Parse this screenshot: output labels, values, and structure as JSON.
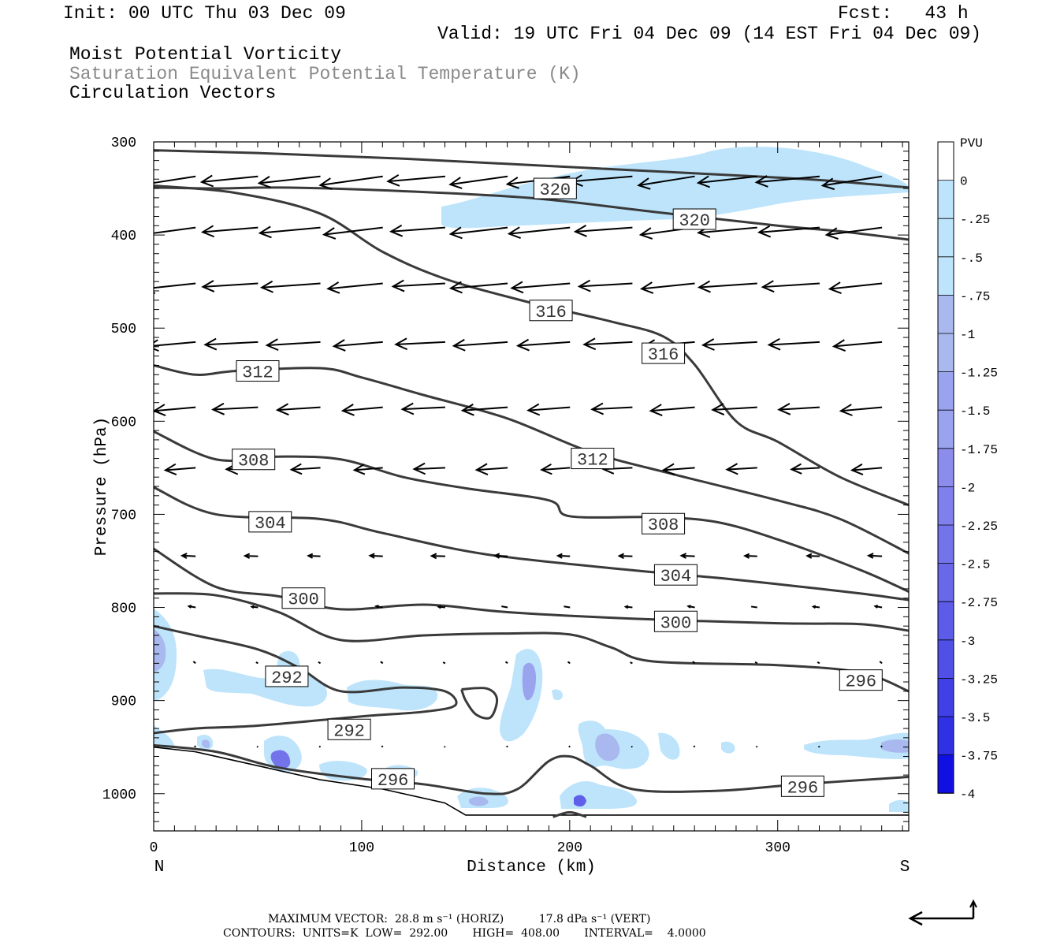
{
  "header": {
    "init": "Init: 00 UTC Thu 03 Dec 09",
    "fcst": "Fcst:   43 h",
    "valid": "Valid: 19 UTC Fri 04 Dec 09 (14 EST Fri 04 Dec 09)",
    "field1": "Moist Potential Vorticity",
    "field2": "Saturation Equivalent Potential Temperature (K)",
    "field3": "Circulation Vectors"
  },
  "footer": {
    "max_vector": "MAXIMUM VECTOR:  28.8 m s⁻¹ (HORIZ)          17.8 dPa s⁻¹ (VERT)",
    "contours": "CONTOURS:  UNITS=K  LOW=  292.00       HIGH=  408.00       INTERVAL=    4.0000"
  },
  "colors": {
    "contour": "#3a3a3a",
    "vector": "#000000",
    "pv_light": "#bde4fb",
    "pv_medium": "#a9b8ef",
    "pv_deep": "#5f5fe9"
  },
  "chart_data": {
    "type": "contour",
    "xlabel": "Distance (km)",
    "ylabel": "Pressure (hPa)",
    "xlim": [
      0,
      363
    ],
    "ylim": [
      1040,
      300
    ],
    "x_ticks": [
      0,
      100,
      200,
      300
    ],
    "y_ticks": [
      300,
      400,
      500,
      600,
      700,
      800,
      900,
      1000
    ],
    "x_end_labels": {
      "left": "N",
      "right": "S"
    },
    "colorbar": {
      "title": "PVU",
      "labels": [
        "0",
        "-.25",
        "-.5",
        "-.75",
        "-1",
        "-1.25",
        "-1.5",
        "-1.75",
        "-2",
        "-2.25",
        "-2.5",
        "-2.75",
        "-3",
        "-3.25",
        "-3.5",
        "-3.75",
        "-4"
      ],
      "colors": [
        "#ffffff",
        "#bde4fb",
        "#bde4fb",
        "#bde4fb",
        "#a9b8ef",
        "#a9b8ef",
        "#9aa3ee",
        "#9aa3ee",
        "#8c8ced",
        "#8080ec",
        "#7474ea",
        "#6868e9",
        "#5c5ce8",
        "#5050e7",
        "#4040e6",
        "#3030e5",
        "#1010e3"
      ]
    },
    "contour_labels": [
      {
        "value": "320",
        "x": 193,
        "p": 350
      },
      {
        "value": "320",
        "x": 260,
        "p": 383
      },
      {
        "value": "316",
        "x": 191,
        "p": 481
      },
      {
        "value": "316",
        "x": 245,
        "p": 527
      },
      {
        "value": "312",
        "x": 50,
        "p": 546
      },
      {
        "value": "312",
        "x": 211,
        "p": 640
      },
      {
        "value": "308",
        "x": 48,
        "p": 641
      },
      {
        "value": "308",
        "x": 245,
        "p": 710
      },
      {
        "value": "304",
        "x": 56,
        "p": 708
      },
      {
        "value": "304",
        "x": 251,
        "p": 765
      },
      {
        "value": "300",
        "x": 72,
        "p": 790
      },
      {
        "value": "300",
        "x": 251,
        "p": 815
      },
      {
        "value": "296",
        "x": 340,
        "p": 878
      },
      {
        "value": "296",
        "x": 115,
        "p": 984
      },
      {
        "value": "296",
        "x": 312,
        "p": 992
      },
      {
        "value": "292",
        "x": 64,
        "p": 874
      },
      {
        "value": "292",
        "x": 94,
        "p": 931
      }
    ],
    "contours": [
      {
        "value": 320,
        "points": [
          [
            0,
            309
          ],
          [
            50,
            312
          ],
          [
            120,
            318
          ],
          [
            200,
            327
          ],
          [
            280,
            336
          ],
          [
            320,
            341
          ],
          [
            363,
            349
          ]
        ]
      },
      {
        "value": 320,
        "points": [
          [
            0,
            349
          ],
          [
            30,
            350
          ],
          [
            60,
            349
          ],
          [
            110,
            352
          ],
          [
            180,
            360
          ],
          [
            240,
            375
          ],
          [
            300,
            390
          ],
          [
            330,
            396
          ],
          [
            363,
            405
          ]
        ]
      },
      {
        "value": 316,
        "points": [
          [
            0,
            347
          ],
          [
            40,
            355
          ],
          [
            80,
            377
          ],
          [
            110,
            418
          ],
          [
            140,
            447
          ],
          [
            180,
            472
          ],
          [
            220,
            493
          ],
          [
            245,
            509
          ],
          [
            260,
            539
          ],
          [
            280,
            600
          ],
          [
            300,
            622
          ],
          [
            330,
            660
          ],
          [
            363,
            690
          ]
        ]
      },
      {
        "value": 312,
        "points": [
          [
            0,
            540
          ],
          [
            20,
            550
          ],
          [
            40,
            546
          ],
          [
            80,
            543
          ],
          [
            100,
            553
          ],
          [
            130,
            572
          ],
          [
            170,
            597
          ],
          [
            210,
            633
          ],
          [
            250,
            657
          ],
          [
            300,
            685
          ],
          [
            330,
            705
          ],
          [
            363,
            742
          ]
        ]
      },
      {
        "value": 308,
        "points": [
          [
            0,
            611
          ],
          [
            30,
            641
          ],
          [
            60,
            638
          ],
          [
            90,
            641
          ],
          [
            120,
            660
          ],
          [
            150,
            672
          ],
          [
            190,
            685
          ],
          [
            200,
            702
          ],
          [
            240,
            703
          ],
          [
            270,
            708
          ],
          [
            300,
            727
          ],
          [
            340,
            760
          ],
          [
            363,
            783
          ]
        ]
      },
      {
        "value": 304,
        "points": [
          [
            0,
            671
          ],
          [
            30,
            700
          ],
          [
            80,
            705
          ],
          [
            110,
            720
          ],
          [
            160,
            743
          ],
          [
            230,
            760
          ],
          [
            270,
            768
          ],
          [
            300,
            775
          ],
          [
            340,
            785
          ],
          [
            363,
            792
          ]
        ]
      },
      {
        "value": 300,
        "points": [
          [
            0,
            737
          ],
          [
            30,
            778
          ],
          [
            60,
            788
          ],
          [
            90,
            802
          ],
          [
            130,
            797
          ],
          [
            170,
            805
          ],
          [
            230,
            812
          ],
          [
            300,
            817
          ],
          [
            340,
            818
          ],
          [
            363,
            825
          ]
        ]
      },
      {
        "value": 296,
        "points": [
          [
            0,
            785
          ],
          [
            30,
            787
          ],
          [
            60,
            805
          ],
          [
            90,
            835
          ],
          [
            130,
            830
          ],
          [
            170,
            828
          ],
          [
            200,
            829
          ],
          [
            220,
            843
          ],
          [
            240,
            858
          ],
          [
            300,
            862
          ],
          [
            340,
            870
          ],
          [
            363,
            890
          ]
        ]
      },
      {
        "value": 292,
        "points": [
          [
            0,
            820
          ],
          [
            20,
            830
          ],
          [
            50,
            845
          ],
          [
            70,
            865
          ],
          [
            90,
            890
          ],
          [
            120,
            886
          ],
          [
            140,
            890
          ],
          [
            145,
            905
          ],
          [
            130,
            912
          ],
          [
            100,
            917
          ],
          [
            50,
            927
          ],
          [
            20,
            930
          ],
          [
            0,
            935
          ]
        ]
      },
      {
        "value": 292,
        "points": [
          [
            148,
            888
          ],
          [
            160,
            887
          ],
          [
            165,
            898
          ],
          [
            162,
            918
          ],
          [
            155,
            915
          ],
          [
            150,
            900
          ],
          [
            148,
            888
          ]
        ]
      },
      {
        "value": 296,
        "points": [
          [
            0,
            948
          ],
          [
            30,
            955
          ],
          [
            60,
            972
          ],
          [
            100,
            984
          ],
          [
            130,
            990
          ],
          [
            160,
            1000
          ],
          [
            175,
            995
          ],
          [
            190,
            965
          ],
          [
            200,
            960
          ],
          [
            210,
            970
          ],
          [
            230,
            995
          ],
          [
            270,
            997
          ],
          [
            310,
            990
          ],
          [
            363,
            982
          ]
        ]
      },
      {
        "value": 296,
        "points": [
          [
            192,
            1025
          ],
          [
            200,
            1020
          ],
          [
            208,
            1025
          ]
        ]
      }
    ],
    "terrain": [
      [
        0,
        950
      ],
      [
        20,
        955
      ],
      [
        50,
        970
      ],
      [
        80,
        985
      ],
      [
        110,
        995
      ],
      [
        140,
        1010
      ],
      [
        150,
        1023
      ],
      [
        363,
        1023
      ]
    ],
    "vector_rows": [
      {
        "p": 337,
        "u": -28,
        "w": -1.5
      },
      {
        "p": 392,
        "u": -27,
        "w": -1.2
      },
      {
        "p": 452,
        "u": -26,
        "w": -0.9
      },
      {
        "p": 515,
        "u": -24,
        "w": -0.7
      },
      {
        "p": 585,
        "u": -20,
        "w": -0.6
      },
      {
        "p": 650,
        "u": -14,
        "w": -0.4
      },
      {
        "p": 745,
        "u": -6,
        "w": 0.1
      },
      {
        "p": 800,
        "u": -3,
        "w": 0.2
      },
      {
        "p": 860,
        "u": -1,
        "w": 0.3
      },
      {
        "p": 950,
        "u": -0.5,
        "w": 0.2
      }
    ]
  }
}
